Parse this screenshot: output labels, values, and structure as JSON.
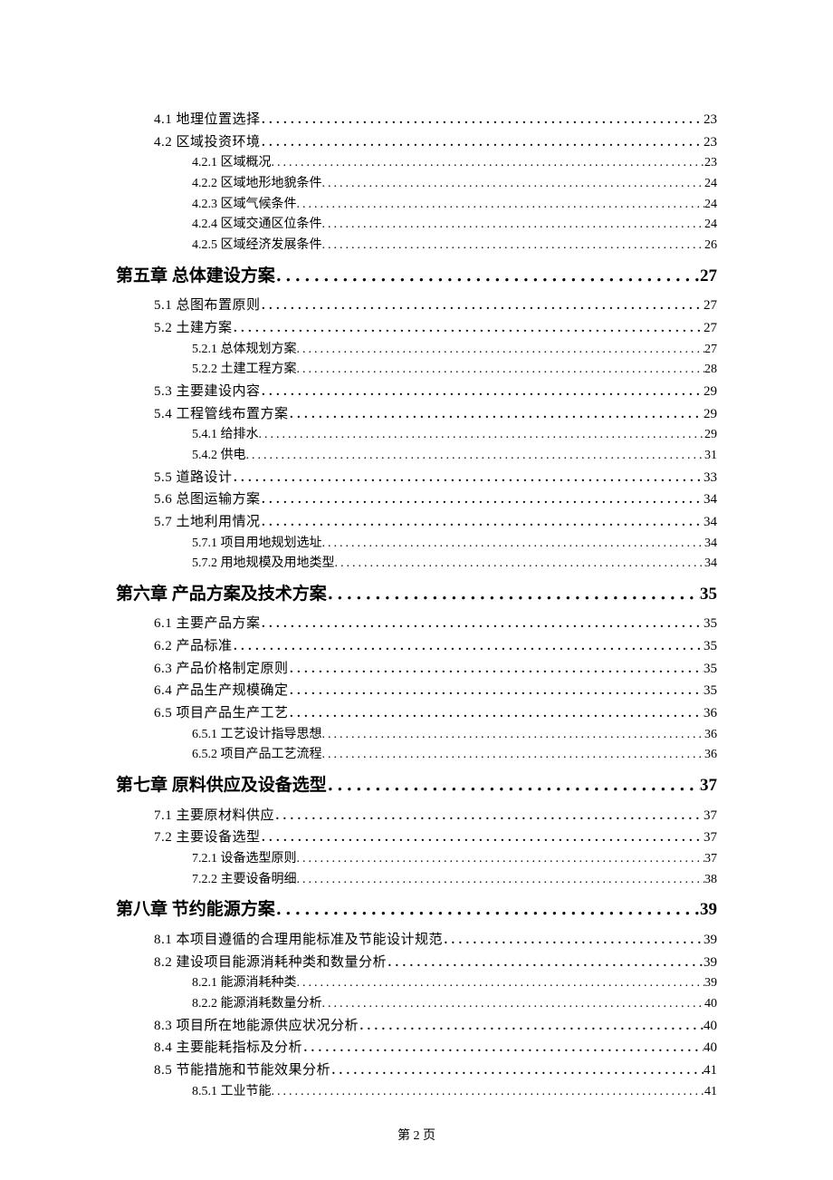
{
  "footer": "第 2 页",
  "entries": [
    {
      "level": 2,
      "label": "4.1 地理位置选择",
      "page": "23"
    },
    {
      "level": 2,
      "label": "4.2 区域投资环境",
      "page": "23"
    },
    {
      "level": 3,
      "label": "4.2.1 区域概况",
      "page": "23"
    },
    {
      "level": 3,
      "label": "4.2.2 区域地形地貌条件",
      "page": "24"
    },
    {
      "level": 3,
      "label": "4.2.3 区域气候条件",
      "page": "24"
    },
    {
      "level": 3,
      "label": "4.2.4 区域交通区位条件",
      "page": "24"
    },
    {
      "level": 3,
      "label": "4.2.5 区域经济发展条件",
      "page": "26"
    },
    {
      "level": 1,
      "label": "第五章 总体建设方案",
      "page": "27"
    },
    {
      "level": 2,
      "label": "5.1 总图布置原则",
      "page": "27"
    },
    {
      "level": 2,
      "label": "5.2 土建方案",
      "page": "27"
    },
    {
      "level": 3,
      "label": "5.2.1 总体规划方案",
      "page": "27"
    },
    {
      "level": 3,
      "label": "5.2.2 土建工程方案",
      "page": "28"
    },
    {
      "level": 2,
      "label": "5.3 主要建设内容",
      "page": "29"
    },
    {
      "level": 2,
      "label": "5.4 工程管线布置方案",
      "page": "29"
    },
    {
      "level": 3,
      "label": "5.4.1 给排水",
      "page": "29"
    },
    {
      "level": 3,
      "label": "5.4.2 供电",
      "page": "31"
    },
    {
      "level": 2,
      "label": "5.5 道路设计",
      "page": "33"
    },
    {
      "level": 2,
      "label": "5.6 总图运输方案",
      "page": "34"
    },
    {
      "level": 2,
      "label": "5.7 土地利用情况",
      "page": "34"
    },
    {
      "level": 3,
      "label": "5.7.1 项目用地规划选址",
      "page": "34"
    },
    {
      "level": 3,
      "label": "5.7.2 用地规模及用地类型",
      "page": "34"
    },
    {
      "level": 1,
      "label": "第六章 产品方案及技术方案",
      "page": "35"
    },
    {
      "level": 2,
      "label": "6.1 主要产品方案",
      "page": "35"
    },
    {
      "level": 2,
      "label": "6.2 产品标准",
      "page": "35"
    },
    {
      "level": 2,
      "label": "6.3 产品价格制定原则",
      "page": "35"
    },
    {
      "level": 2,
      "label": "6.4 产品生产规模确定",
      "page": "35"
    },
    {
      "level": 2,
      "label": "6.5 项目产品生产工艺",
      "page": "36"
    },
    {
      "level": 3,
      "label": "6.5.1 工艺设计指导思想",
      "page": "36"
    },
    {
      "level": 3,
      "label": "6.5.2 项目产品工艺流程",
      "page": "36"
    },
    {
      "level": 1,
      "label": "第七章 原料供应及设备选型",
      "page": "37"
    },
    {
      "level": 2,
      "label": "7.1 主要原材料供应",
      "page": "37"
    },
    {
      "level": 2,
      "label": "7.2 主要设备选型",
      "page": "37"
    },
    {
      "level": 3,
      "label": "7.2.1 设备选型原则",
      "page": "37"
    },
    {
      "level": 3,
      "label": "7.2.2 主要设备明细",
      "page": "38"
    },
    {
      "level": 1,
      "label": "第八章 节约能源方案",
      "page": "39"
    },
    {
      "level": 2,
      "label": "8.1 本项目遵循的合理用能标准及节能设计规范",
      "page": "39"
    },
    {
      "level": 2,
      "label": "8.2 建设项目能源消耗种类和数量分析",
      "page": "39"
    },
    {
      "level": 3,
      "label": "8.2.1 能源消耗种类",
      "page": "39"
    },
    {
      "level": 3,
      "label": "8.2.2 能源消耗数量分析",
      "page": "40"
    },
    {
      "level": 2,
      "label": "8.3 项目所在地能源供应状况分析",
      "page": "40"
    },
    {
      "level": 2,
      "label": "8.4 主要能耗指标及分析",
      "page": "40"
    },
    {
      "level": 2,
      "label": "8.5 节能措施和节能效果分析",
      "page": "41"
    },
    {
      "level": 3,
      "label": "8.5.1 工业节能",
      "page": "41"
    }
  ]
}
